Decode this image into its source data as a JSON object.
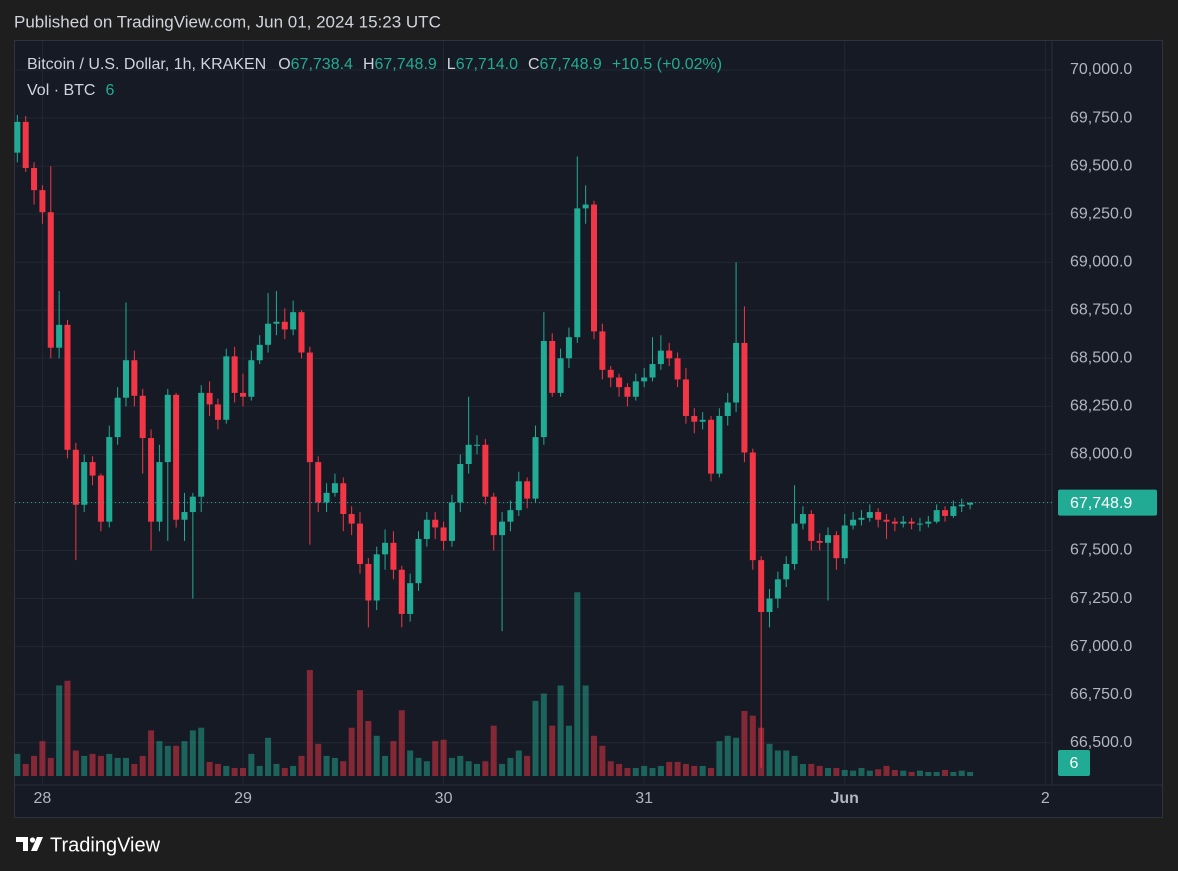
{
  "header": {
    "published": "Published on TradingView.com, Jun 01, 2024 15:23 UTC",
    "brand": "TradingView"
  },
  "chart_data": {
    "type": "candlestick",
    "symbol": "Bitcoin / U.S. Dollar, 1h, KRAKEN",
    "ohlc_legend": [
      {
        "key": "O",
        "label": "67,738.4"
      },
      {
        "key": "H",
        "label": "67,748.9"
      },
      {
        "key": "L",
        "label": "67,714.0"
      },
      {
        "key": "C",
        "label": "67,748.9"
      }
    ],
    "change": "+10.5 (+0.02%)",
    "open": [
      69570,
      69730,
      69490,
      69375,
      69260,
      68555,
      68674,
      68024,
      67738,
      67960,
      67890,
      67650,
      68090,
      68295,
      68490,
      68305,
      68085,
      67650,
      67960,
      68310,
      67660,
      67700,
      67780,
      68320,
      68260,
      68180,
      68510,
      68320,
      68300,
      68490,
      68570,
      68680,
      68690,
      68650,
      68740,
      68530,
      67960,
      67750,
      67800,
      67850,
      67690,
      67640,
      67430,
      67240,
      67480,
      67540,
      67400,
      67170,
      67330,
      67560,
      67660,
      67620,
      67550,
      67750,
      67950,
      68050,
      68050,
      67780,
      67580,
      67650,
      67710,
      67860,
      67770,
      68090,
      68590,
      68320,
      68500,
      68610,
      69280,
      69300,
      68640,
      68440,
      68400,
      68350,
      68300,
      68380,
      68400,
      68470,
      68540,
      68500,
      68390,
      68200,
      68170,
      68180,
      67900,
      68200,
      68270,
      68580,
      68010,
      67450,
      67180,
      67250,
      67350,
      67430,
      67640,
      67690,
      67550,
      67540,
      67580,
      67460,
      67630,
      67660,
      67670,
      67700,
      67660,
      67650,
      67640,
      67650,
      67640,
      67640,
      67650,
      67710,
      67680,
      67730,
      67738.4
    ],
    "high": [
      69766,
      69760,
      69520,
      69400,
      69500,
      68850,
      68700,
      68060,
      68000,
      67990,
      67900,
      68150,
      68350,
      68790,
      68540,
      68340,
      68130,
      68050,
      68340,
      68320,
      67800,
      67800,
      68360,
      68380,
      68290,
      68550,
      68560,
      68420,
      68540,
      68620,
      68840,
      68850,
      68760,
      68800,
      68750,
      68560,
      67990,
      67850,
      67900,
      67880,
      67730,
      67700,
      67460,
      67520,
      67610,
      67600,
      67420,
      67380,
      67600,
      67700,
      67700,
      67650,
      67790,
      68000,
      68300,
      68100,
      68080,
      67800,
      67700,
      67760,
      67910,
      67880,
      68150,
      68740,
      68630,
      68550,
      68660,
      69550,
      69400,
      69320,
      68680,
      68460,
      68420,
      68370,
      68420,
      68450,
      68610,
      68620,
      68580,
      68530,
      68450,
      68240,
      68220,
      68200,
      68240,
      68320,
      69000,
      68770,
      68030,
      67470,
      67300,
      67390,
      67470,
      67840,
      67730,
      67710,
      67590,
      67620,
      67600,
      67690,
      67700,
      67710,
      67740,
      67720,
      67690,
      67670,
      67680,
      67670,
      67670,
      67680,
      67740,
      67730,
      67760,
      67770,
      67748.9
    ],
    "low": [
      69520,
      69470,
      69300,
      69200,
      68500,
      68500,
      67980,
      67450,
      67700,
      67840,
      67600,
      67620,
      68050,
      68250,
      68250,
      67900,
      67500,
      67600,
      67550,
      67620,
      67550,
      67250,
      67700,
      68200,
      68130,
      68160,
      68270,
      68250,
      68280,
      68470,
      68530,
      68620,
      68600,
      68620,
      68500,
      67530,
      67700,
      67700,
      67780,
      67600,
      67580,
      67380,
      67100,
      67190,
      67400,
      67350,
      67100,
      67130,
      67290,
      67520,
      67560,
      67500,
      67520,
      67700,
      67900,
      68000,
      67740,
      67500,
      67080,
      67600,
      67680,
      67720,
      67750,
      68050,
      68300,
      68300,
      68450,
      68580,
      69200,
      68600,
      68390,
      68350,
      68300,
      68250,
      68280,
      68350,
      68380,
      68440,
      68460,
      68350,
      68160,
      68110,
      68130,
      67860,
      67880,
      68150,
      68220,
      67960,
      67400,
      66370,
      67100,
      67200,
      67310,
      67400,
      67610,
      67500,
      67500,
      67240,
      67400,
      67430,
      67610,
      67630,
      67650,
      67620,
      67560,
      67600,
      67620,
      67610,
      67600,
      67620,
      67640,
      67650,
      67670,
      67700,
      67714
    ],
    "close": [
      69730,
      69490,
      69375,
      69260,
      68555,
      68674,
      68024,
      67738,
      67960,
      67890,
      67650,
      68090,
      68295,
      68490,
      68305,
      68085,
      67650,
      67960,
      68310,
      67660,
      67700,
      67780,
      68320,
      68260,
      68180,
      68510,
      68320,
      68300,
      68490,
      68570,
      68680,
      68690,
      68650,
      68740,
      68530,
      67960,
      67750,
      67800,
      67850,
      67690,
      67640,
      67430,
      67240,
      67480,
      67540,
      67400,
      67170,
      67330,
      67560,
      67660,
      67620,
      67550,
      67750,
      67950,
      68050,
      68050,
      67780,
      67580,
      67650,
      67710,
      67860,
      67770,
      68090,
      68590,
      68320,
      68500,
      68610,
      69280,
      69300,
      68640,
      68440,
      68400,
      68350,
      68300,
      68380,
      68400,
      68470,
      68540,
      68500,
      68390,
      68200,
      68170,
      68180,
      67900,
      68200,
      68270,
      68580,
      68010,
      67450,
      67180,
      67250,
      67350,
      67430,
      67640,
      67690,
      67550,
      67540,
      67580,
      67460,
      67630,
      67660,
      67670,
      67700,
      67660,
      67650,
      67640,
      67650,
      67640,
      67640,
      67650,
      67710,
      67680,
      67730,
      67738.4,
      67748.9
    ],
    "up_color": "#22ab94",
    "down_color": "#f23645",
    "last_price": {
      "value": 67748.9,
      "label": "67,748.9"
    },
    "ylim": [
      66280,
      70130
    ],
    "yticks": [
      {
        "value": 66500,
        "label": "66,500.0"
      },
      {
        "value": 66750,
        "label": "66,750.0"
      },
      {
        "value": 67000,
        "label": "67,000.0"
      },
      {
        "value": 67250,
        "label": "67,250.0"
      },
      {
        "value": 67500,
        "label": "67,500.0"
      },
      {
        "value": 67750,
        "label": "67,750.0"
      },
      {
        "value": 68000,
        "label": "68,000.0"
      },
      {
        "value": 68250,
        "label": "68,250.0"
      },
      {
        "value": 68500,
        "label": "68,500.0"
      },
      {
        "value": 68750,
        "label": "68,750.0"
      },
      {
        "value": 69000,
        "label": "69,000.0"
      },
      {
        "value": 69250,
        "label": "69,250.0"
      },
      {
        "value": 69500,
        "label": "69,500.0"
      },
      {
        "value": 69750,
        "label": "69,750.0"
      },
      {
        "value": 70000,
        "label": "70,000.0"
      }
    ],
    "xlim": [
      -0.4,
      123.8
    ],
    "xticks": [
      {
        "value": 3,
        "label": "28"
      },
      {
        "value": 27,
        "label": "29"
      },
      {
        "value": 51,
        "label": "30"
      },
      {
        "value": 75,
        "label": "31"
      },
      {
        "value": 99,
        "label": "Jun"
      },
      {
        "value": 123,
        "label": "2"
      }
    ],
    "grid": true,
    "volume": {
      "name": "Vol · BTC",
      "ylim": [
        0,
        1090
      ],
      "up_color": "rgba(34,171,148,0.5)",
      "down_color": "rgba(242,54,69,0.5)",
      "values": [
        33,
        18,
        30,
        52,
        27,
        135,
        142,
        38,
        30,
        33,
        30,
        33,
        27,
        27,
        18,
        30,
        68,
        52,
        45,
        45,
        52,
        68,
        72,
        21,
        18,
        15,
        12,
        12,
        33,
        15,
        57,
        18,
        12,
        15,
        30,
        158,
        48,
        30,
        27,
        22,
        72,
        128,
        82,
        60,
        30,
        52,
        98,
        38,
        27,
        22,
        52,
        54,
        27,
        30,
        22,
        18,
        22,
        75,
        18,
        27,
        38,
        30,
        112,
        123,
        75,
        135,
        75,
        274,
        135,
        60,
        45,
        22,
        18,
        12,
        12,
        15,
        12,
        15,
        21,
        21,
        18,
        15,
        15,
        12,
        52,
        60,
        57,
        97,
        90,
        72,
        48,
        38,
        38,
        30,
        18,
        18,
        15,
        12,
        12,
        9,
        8,
        12,
        8,
        10,
        15,
        9,
        8,
        6,
        8,
        6,
        6,
        9,
        6,
        8,
        6
      ]
    }
  }
}
